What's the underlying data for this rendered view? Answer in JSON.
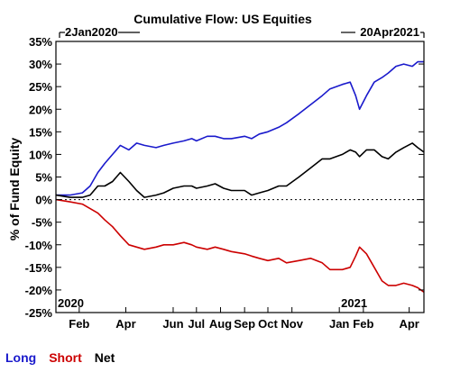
{
  "chart_data": {
    "type": "line",
    "title": "Cumulative Flow: US Equities",
    "start_label": "2Jan2020",
    "end_label": "20Apr2021",
    "ylabel": "% of Fund Equity",
    "ylim": [
      -25,
      35
    ],
    "yticks": [
      35,
      30,
      25,
      20,
      15,
      10,
      5,
      0,
      -5,
      -10,
      -15,
      -20,
      -25
    ],
    "ytick_labels": [
      "35%",
      "30%",
      "25%",
      "20%",
      "15%",
      "10%",
      "5%",
      "0%",
      "-5%",
      "-10%",
      "-15%",
      "-20%",
      "-25%"
    ],
    "xlim": [
      "2020-01-02",
      "2021-04-20"
    ],
    "xticks": [
      {
        "date": "2020-02-01",
        "label": "Feb"
      },
      {
        "date": "2020-04-01",
        "label": "Apr"
      },
      {
        "date": "2020-06-01",
        "label": "Jun"
      },
      {
        "date": "2020-07-01",
        "label": "Jul"
      },
      {
        "date": "2020-08-01",
        "label": "Aug"
      },
      {
        "date": "2020-09-01",
        "label": "Sep"
      },
      {
        "date": "2020-10-01",
        "label": "Oct"
      },
      {
        "date": "2020-11-01",
        "label": "Nov"
      },
      {
        "date": "2021-01-01",
        "label": "Jan"
      },
      {
        "date": "2021-02-01",
        "label": "Feb"
      },
      {
        "date": "2021-04-01",
        "label": "Apr"
      }
    ],
    "year_labels": [
      {
        "date": "2020-01-02",
        "label": "2020"
      },
      {
        "date": "2021-01-01",
        "label": "2021"
      }
    ],
    "zero_line": "dotted",
    "legend_position": "bottom-left",
    "series": [
      {
        "name": "Long",
        "color": "#1a1acc",
        "points": [
          [
            "2020-01-02",
            1
          ],
          [
            "2020-01-20",
            1
          ],
          [
            "2020-02-05",
            1.5
          ],
          [
            "2020-02-15",
            3
          ],
          [
            "2020-02-25",
            6
          ],
          [
            "2020-03-05",
            8
          ],
          [
            "2020-03-15",
            10
          ],
          [
            "2020-03-25",
            12
          ],
          [
            "2020-04-05",
            11
          ],
          [
            "2020-04-15",
            12.5
          ],
          [
            "2020-04-25",
            12
          ],
          [
            "2020-05-10",
            11.5
          ],
          [
            "2020-05-20",
            12
          ],
          [
            "2020-06-01",
            12.5
          ],
          [
            "2020-06-15",
            13
          ],
          [
            "2020-06-25",
            13.5
          ],
          [
            "2020-07-01",
            13
          ],
          [
            "2020-07-15",
            14
          ],
          [
            "2020-07-25",
            14
          ],
          [
            "2020-08-05",
            13.5
          ],
          [
            "2020-08-15",
            13.5
          ],
          [
            "2020-09-01",
            14
          ],
          [
            "2020-09-10",
            13.5
          ],
          [
            "2020-09-20",
            14.5
          ],
          [
            "2020-10-01",
            15
          ],
          [
            "2020-10-15",
            16
          ],
          [
            "2020-10-25",
            17
          ],
          [
            "2020-11-10",
            19
          ],
          [
            "2020-11-25",
            21
          ],
          [
            "2020-12-10",
            23
          ],
          [
            "2020-12-20",
            24.5
          ],
          [
            "2021-01-05",
            25.5
          ],
          [
            "2021-01-15",
            26
          ],
          [
            "2021-01-22",
            23
          ],
          [
            "2021-01-27",
            20
          ],
          [
            "2021-02-05",
            23
          ],
          [
            "2021-02-15",
            26
          ],
          [
            "2021-02-25",
            27
          ],
          [
            "2021-03-05",
            28
          ],
          [
            "2021-03-15",
            29.5
          ],
          [
            "2021-03-25",
            30
          ],
          [
            "2021-04-05",
            29.5
          ],
          [
            "2021-04-12",
            30.5
          ],
          [
            "2021-04-20",
            30.5
          ]
        ]
      },
      {
        "name": "Short",
        "color": "#cc0000",
        "points": [
          [
            "2020-01-02",
            0
          ],
          [
            "2020-01-20",
            -0.5
          ],
          [
            "2020-02-05",
            -1
          ],
          [
            "2020-02-15",
            -2
          ],
          [
            "2020-02-25",
            -3
          ],
          [
            "2020-03-05",
            -4.5
          ],
          [
            "2020-03-15",
            -6
          ],
          [
            "2020-03-25",
            -8
          ],
          [
            "2020-04-05",
            -10
          ],
          [
            "2020-04-15",
            -10.5
          ],
          [
            "2020-04-25",
            -11
          ],
          [
            "2020-05-10",
            -10.5
          ],
          [
            "2020-05-20",
            -10
          ],
          [
            "2020-06-01",
            -10
          ],
          [
            "2020-06-15",
            -9.5
          ],
          [
            "2020-06-25",
            -10
          ],
          [
            "2020-07-01",
            -10.5
          ],
          [
            "2020-07-15",
            -11
          ],
          [
            "2020-07-25",
            -10.5
          ],
          [
            "2020-08-05",
            -11
          ],
          [
            "2020-08-15",
            -11.5
          ],
          [
            "2020-09-01",
            -12
          ],
          [
            "2020-09-10",
            -12.5
          ],
          [
            "2020-09-20",
            -13
          ],
          [
            "2020-10-01",
            -13.5
          ],
          [
            "2020-10-15",
            -13
          ],
          [
            "2020-10-25",
            -14
          ],
          [
            "2020-11-10",
            -13.5
          ],
          [
            "2020-11-25",
            -13
          ],
          [
            "2020-12-10",
            -14
          ],
          [
            "2020-12-20",
            -15.5
          ],
          [
            "2021-01-05",
            -15.5
          ],
          [
            "2021-01-15",
            -15
          ],
          [
            "2021-01-22",
            -12.5
          ],
          [
            "2021-01-27",
            -10.5
          ],
          [
            "2021-02-05",
            -12
          ],
          [
            "2021-02-15",
            -15
          ],
          [
            "2021-02-25",
            -18
          ],
          [
            "2021-03-05",
            -19
          ],
          [
            "2021-03-15",
            -19
          ],
          [
            "2021-03-25",
            -18.5
          ],
          [
            "2021-04-05",
            -19
          ],
          [
            "2021-04-12",
            -19.5
          ],
          [
            "2021-04-20",
            -20.5
          ]
        ]
      },
      {
        "name": "Net",
        "color": "#000000",
        "points": [
          [
            "2020-01-02",
            1
          ],
          [
            "2020-01-20",
            0.5
          ],
          [
            "2020-02-05",
            0.5
          ],
          [
            "2020-02-15",
            1
          ],
          [
            "2020-02-25",
            3
          ],
          [
            "2020-03-05",
            3
          ],
          [
            "2020-03-15",
            4
          ],
          [
            "2020-03-25",
            6
          ],
          [
            "2020-04-05",
            4
          ],
          [
            "2020-04-15",
            2
          ],
          [
            "2020-04-25",
            0.5
          ],
          [
            "2020-05-10",
            1
          ],
          [
            "2020-05-20",
            1.5
          ],
          [
            "2020-06-01",
            2.5
          ],
          [
            "2020-06-15",
            3
          ],
          [
            "2020-06-25",
            3
          ],
          [
            "2020-07-01",
            2.5
          ],
          [
            "2020-07-15",
            3
          ],
          [
            "2020-07-25",
            3.5
          ],
          [
            "2020-08-05",
            2.5
          ],
          [
            "2020-08-15",
            2
          ],
          [
            "2020-09-01",
            2
          ],
          [
            "2020-09-10",
            1
          ],
          [
            "2020-09-20",
            1.5
          ],
          [
            "2020-10-01",
            2
          ],
          [
            "2020-10-15",
            3
          ],
          [
            "2020-10-25",
            3
          ],
          [
            "2020-11-10",
            5
          ],
          [
            "2020-11-25",
            7
          ],
          [
            "2020-12-10",
            9
          ],
          [
            "2020-12-20",
            9
          ],
          [
            "2021-01-05",
            10
          ],
          [
            "2021-01-15",
            11
          ],
          [
            "2021-01-22",
            10.5
          ],
          [
            "2021-01-27",
            9.5
          ],
          [
            "2021-02-05",
            11
          ],
          [
            "2021-02-15",
            11
          ],
          [
            "2021-02-25",
            9.5
          ],
          [
            "2021-03-05",
            9
          ],
          [
            "2021-03-15",
            10.5
          ],
          [
            "2021-03-25",
            11.5
          ],
          [
            "2021-04-05",
            12.5
          ],
          [
            "2021-04-12",
            11.5
          ],
          [
            "2021-04-20",
            10.5
          ]
        ]
      }
    ]
  }
}
